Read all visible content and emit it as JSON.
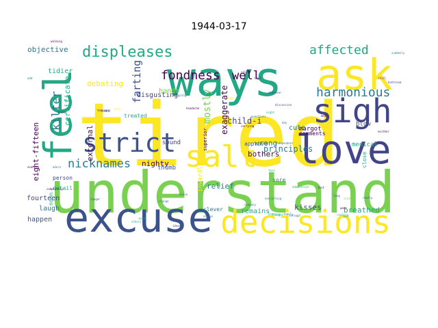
{
  "chart_data": {
    "type": "wordcloud",
    "title": "1944-03-17",
    "colors": {
      "yellow": "#fde725",
      "lime": "#7ad151",
      "green": "#22a884",
      "teal": "#2a788e",
      "blue": "#414487",
      "indigo": "#3b528b",
      "purple": "#440154",
      "grey": "#777777"
    },
    "words": [
      {
        "text": "tired",
        "weight": 100,
        "color": "yellow"
      },
      {
        "text": "understand",
        "weight": 90,
        "color": "lime"
      },
      {
        "text": "ways",
        "weight": 62,
        "color": "green"
      },
      {
        "text": "ask",
        "weight": 58,
        "color": "yellow"
      },
      {
        "text": "excuse",
        "weight": 55,
        "color": "indigo"
      },
      {
        "text": "feel",
        "weight": 52,
        "color": "green"
      },
      {
        "text": "love",
        "weight": 48,
        "color": "blue"
      },
      {
        "text": "sigh",
        "weight": 45,
        "color": "blue"
      },
      {
        "text": "decisions",
        "weight": 44,
        "color": "yellow"
      },
      {
        "text": "salt",
        "weight": 40,
        "color": "yellow"
      },
      {
        "text": "strict",
        "weight": 36,
        "color": "indigo"
      },
      {
        "text": "displeases",
        "weight": 22,
        "color": "green"
      },
      {
        "text": "affected",
        "weight": 18,
        "color": "green"
      },
      {
        "text": "harmonious",
        "weight": 18,
        "color": "teal"
      },
      {
        "text": "fondness",
        "weight": 17,
        "color": "purple"
      },
      {
        "text": "nicknames",
        "weight": 17,
        "color": "teal"
      },
      {
        "text": "well",
        "weight": 16,
        "color": "purple"
      },
      {
        "text": "kilter",
        "weight": 16,
        "color": "teal"
      },
      {
        "text": "farting",
        "weight": 15,
        "color": "indigo"
      },
      {
        "text": "mostly",
        "weight": 14,
        "color": "lime"
      },
      {
        "text": "exaggerate",
        "weight": 12,
        "color": "purple"
      },
      {
        "text": "child-i",
        "weight": 12,
        "color": "blue"
      },
      {
        "text": "principles",
        "weight": 12,
        "color": "teal"
      },
      {
        "text": "certificate",
        "weight": 11,
        "color": "green"
      },
      {
        "text": "external",
        "weight": 11,
        "color": "purple"
      },
      {
        "text": "eight-fifteen",
        "weight": 10,
        "color": "purple"
      },
      {
        "text": "objective",
        "weight": 10,
        "color": "teal"
      },
      {
        "text": "debating",
        "weight": 10,
        "color": "yellow"
      },
      {
        "text": "disgusting",
        "weight": 10,
        "color": "blue"
      },
      {
        "text": "nighty",
        "weight": 10,
        "color": "purple"
      },
      {
        "text": "bothers",
        "weight": 10,
        "color": "purple"
      },
      {
        "text": "tidier",
        "weight": 10,
        "color": "green"
      },
      {
        "text": "hands",
        "weight": 10,
        "color": "lime"
      },
      {
        "text": "cute",
        "weight": 10,
        "color": "teal"
      },
      {
        "text": "wrong",
        "weight": 10,
        "color": "teal"
      },
      {
        "text": "kisses",
        "weight": 10,
        "color": "blue"
      },
      {
        "text": "breathed",
        "weight": 10,
        "color": "green"
      },
      {
        "text": "relief",
        "weight": 10,
        "color": "teal"
      },
      {
        "text": "laugh",
        "weight": 9,
        "color": "teal"
      },
      {
        "text": "fourteen",
        "weight": 9,
        "color": "blue"
      },
      {
        "text": "happen",
        "weight": 9,
        "color": "indigo"
      },
      {
        "text": "remains",
        "weight": 9,
        "color": "green"
      },
      {
        "text": "margot",
        "weight": 9,
        "color": "purple"
      },
      {
        "text": "medical",
        "weight": 9,
        "color": "green"
      },
      {
        "text": "sound",
        "weight": 9,
        "color": "blue"
      },
      {
        "text": "thumb",
        "weight": 9,
        "color": "indigo"
      },
      {
        "text": "treated",
        "weight": 8,
        "color": "green"
      },
      {
        "text": "approve",
        "weight": 8,
        "color": "indigo"
      },
      {
        "text": "blow",
        "weight": 8,
        "color": "indigo"
      },
      {
        "text": "comments",
        "weight": 8,
        "color": "purple"
      },
      {
        "text": "sore",
        "weight": 8,
        "color": "teal"
      },
      {
        "text": "clever",
        "weight": 8,
        "color": "teal"
      },
      {
        "text": "person",
        "weight": 8,
        "color": "blue"
      },
      {
        "text": "detail",
        "weight": 8,
        "color": "green"
      },
      {
        "text": "noon",
        "weight": 8,
        "color": "green"
      },
      {
        "text": "inwardly",
        "weight": 8,
        "color": "yellow"
      },
      {
        "text": "superior",
        "weight": 7,
        "color": "purple"
      },
      {
        "text": "close",
        "weight": 7,
        "color": "green"
      },
      {
        "text": "suddenly",
        "weight": 3,
        "color": "teal"
      },
      {
        "text": "bathroom",
        "weight": 3,
        "color": "blue"
      },
      {
        "text": "headache",
        "weight": 3,
        "color": "purple"
      },
      {
        "text": "carrying",
        "weight": 3,
        "color": "purple"
      },
      {
        "text": "questions",
        "weight": 3,
        "color": "teal"
      },
      {
        "text": "discussion",
        "weight": 3,
        "color": "blue"
      },
      {
        "text": "independent",
        "weight": 3,
        "color": "teal"
      },
      {
        "text": "admiration",
        "weight": 3,
        "color": "green"
      },
      {
        "text": "everything",
        "weight": 3,
        "color": "teal"
      },
      {
        "text": "completely",
        "weight": 3,
        "color": "purple"
      },
      {
        "text": "teenager",
        "weight": 3,
        "color": "purple"
      },
      {
        "text": "opinions",
        "weight": 3,
        "color": "lime"
      },
      {
        "text": "company",
        "weight": 3,
        "color": "teal"
      },
      {
        "text": "listen",
        "weight": 3,
        "color": "indigo"
      },
      {
        "text": "change",
        "weight": 3,
        "color": "teal"
      },
      {
        "text": "longer",
        "weight": 3,
        "color": "blue"
      },
      {
        "text": "nothing",
        "weight": 3,
        "color": "green"
      },
      {
        "text": "really",
        "weight": 3,
        "color": "blue"
      },
      {
        "text": "walking",
        "weight": 3,
        "color": "purple"
      },
      {
        "text": "thought",
        "weight": 3,
        "color": "green"
      },
      {
        "text": "family",
        "weight": 3,
        "color": "teal"
      },
      {
        "text": "through",
        "weight": 3,
        "color": "teal"
      },
      {
        "text": "neither",
        "weight": 3,
        "color": "purple"
      },
      {
        "text": "evening",
        "weight": 3,
        "color": "purple"
      },
      {
        "text": "adore",
        "weight": 3,
        "color": "teal"
      },
      {
        "text": "mean",
        "weight": 3,
        "color": "purple"
      },
      {
        "text": "still",
        "weight": 3,
        "color": "purple"
      },
      {
        "text": "night",
        "weight": 3,
        "color": "green"
      },
      {
        "text": "since",
        "weight": 3,
        "color": "indigo"
      },
      {
        "text": "sister",
        "weight": 3,
        "color": "lime"
      },
      {
        "text": "going",
        "weight": 3,
        "color": "teal"
      },
      {
        "text": "caller",
        "weight": 3,
        "color": "purple"
      },
      {
        "text": "whenever",
        "weight": 3,
        "color": "blue"
      },
      {
        "text": "realize",
        "weight": 3,
        "color": "green"
      },
      {
        "text": "long",
        "weight": 3,
        "color": "indigo"
      },
      {
        "text": "last",
        "weight": 3,
        "color": "purple"
      },
      {
        "text": "day",
        "weight": 3,
        "color": "teal"
      },
      {
        "text": "face",
        "weight": 3,
        "color": "green"
      },
      {
        "text": "want",
        "weight": 3,
        "color": "purple"
      },
      {
        "text": "ideas",
        "weight": 3,
        "color": "blue"
      },
      {
        "text": "always",
        "weight": 3,
        "color": "teal"
      },
      {
        "text": "others",
        "weight": 3,
        "color": "green"
      },
      {
        "text": "speak",
        "weight": 3,
        "color": "green"
      },
      {
        "text": "else",
        "weight": 3,
        "color": "yellow"
      },
      {
        "text": "huge",
        "weight": 3,
        "color": "yellow"
      },
      {
        "text": "dull",
        "weight": 3,
        "color": "lime"
      },
      {
        "text": "add",
        "weight": 3,
        "color": "teal"
      },
      {
        "text": "gets",
        "weight": 3,
        "color": "lime"
      },
      {
        "text": "kept",
        "weight": 3,
        "color": "blue"
      },
      {
        "text": "lines",
        "weight": 3,
        "color": "purple"
      },
      {
        "text": "bed",
        "weight": 3,
        "color": "green"
      }
    ]
  }
}
